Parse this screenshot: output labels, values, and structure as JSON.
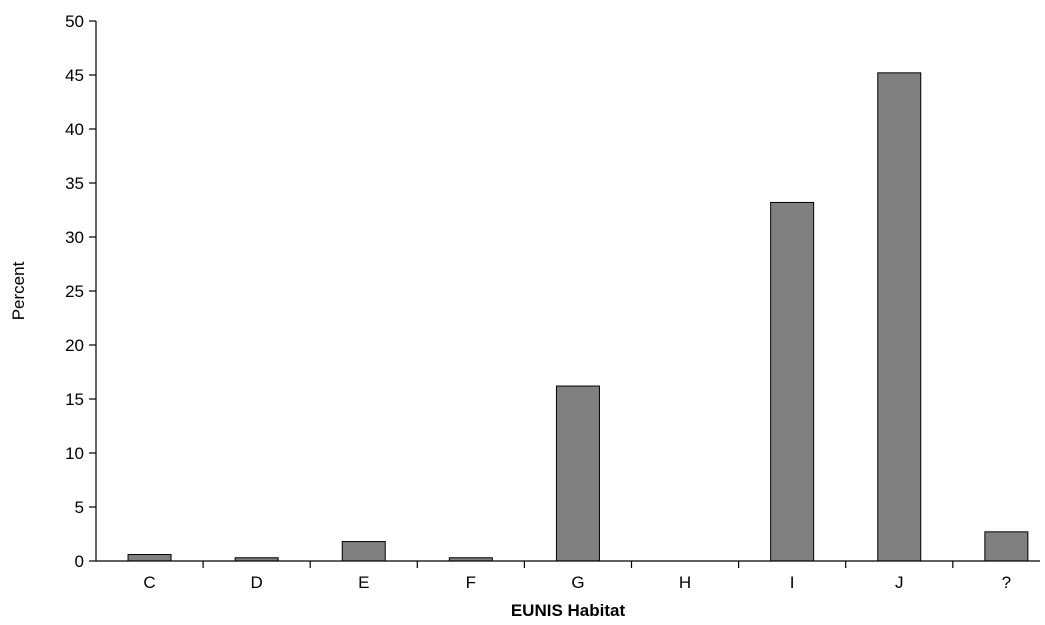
{
  "chart_data": {
    "type": "bar",
    "categories": [
      "C",
      "D",
      "E",
      "F",
      "G",
      "H",
      "I",
      "J",
      "?"
    ],
    "values": [
      0.6,
      0.3,
      1.8,
      0.3,
      16.2,
      0,
      33.2,
      45.2,
      2.7
    ],
    "title": "",
    "xlabel": "EUNIS Habitat",
    "ylabel": "Percent",
    "ylim": [
      0,
      50
    ],
    "yticks": [
      "0",
      "5",
      "10",
      "15",
      "20",
      "25",
      "30",
      "35",
      "40",
      "45",
      "50"
    ],
    "grid": false,
    "bar_color": "#808080",
    "bar_edge_color": "#000000"
  }
}
